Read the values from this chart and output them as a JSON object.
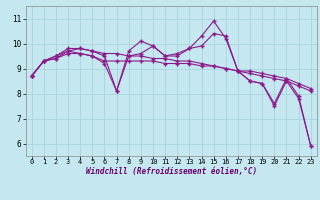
{
  "xlabel": "Windchill (Refroidissement éolien,°C)",
  "background_color": "#c5e8f0",
  "line_color": "#8b1a8b",
  "grid_color": "#a8d4dc",
  "axis_label_color": "#6a006a",
  "ylim": [
    5.5,
    11.5
  ],
  "xlim": [
    -0.5,
    23.5
  ],
  "yticks": [
    6,
    7,
    8,
    9,
    10,
    11
  ],
  "xticks": [
    0,
    1,
    2,
    3,
    4,
    5,
    6,
    7,
    8,
    9,
    10,
    11,
    12,
    13,
    14,
    15,
    16,
    17,
    18,
    19,
    20,
    21,
    22,
    23
  ],
  "series": [
    [
      8.7,
      9.3,
      9.4,
      9.7,
      9.6,
      9.5,
      9.2,
      8.1,
      9.5,
      9.6,
      9.9,
      9.5,
      9.5,
      9.8,
      10.3,
      10.9,
      10.2,
      8.9,
      8.5,
      8.4,
      7.5,
      8.5,
      7.8,
      5.9
    ],
    [
      8.7,
      9.3,
      9.5,
      9.8,
      9.8,
      9.7,
      9.6,
      9.6,
      9.5,
      9.5,
      9.4,
      9.4,
      9.3,
      9.3,
      9.2,
      9.1,
      9.0,
      8.9,
      8.8,
      8.7,
      8.6,
      8.5,
      8.3,
      8.1
    ],
    [
      8.7,
      9.3,
      9.5,
      9.7,
      9.8,
      9.7,
      9.5,
      8.1,
      9.7,
      10.1,
      9.9,
      9.5,
      9.6,
      9.8,
      9.9,
      10.4,
      10.3,
      8.9,
      8.5,
      8.4,
      7.6,
      8.6,
      7.9,
      5.9
    ],
    [
      8.7,
      9.3,
      9.4,
      9.6,
      9.6,
      9.5,
      9.3,
      9.3,
      9.3,
      9.3,
      9.3,
      9.2,
      9.2,
      9.2,
      9.1,
      9.1,
      9.0,
      8.9,
      8.9,
      8.8,
      8.7,
      8.6,
      8.4,
      8.2
    ]
  ]
}
